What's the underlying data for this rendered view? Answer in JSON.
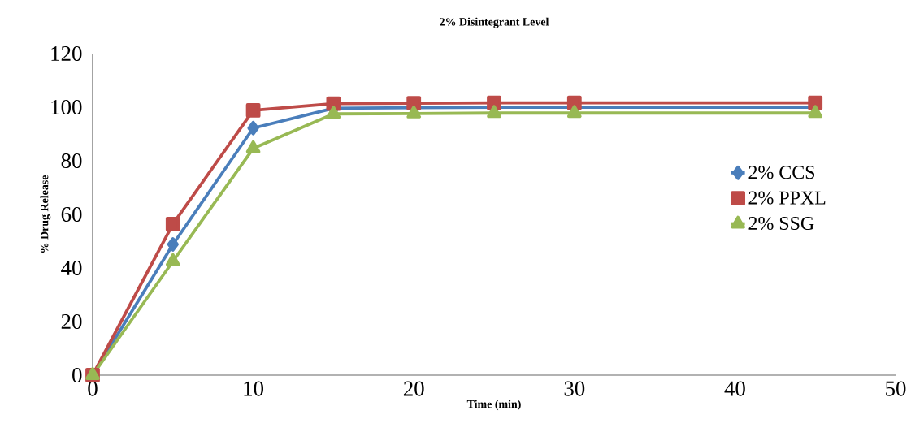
{
  "chart_data": {
    "type": "line",
    "title": "2% Disintegrant Level",
    "xlabel": "Time (min)",
    "ylabel": "% Drug Release",
    "x": [
      0,
      5,
      10,
      15,
      20,
      25,
      30,
      45
    ],
    "series": [
      {
        "name": "2% CCS",
        "color": "#4a7ebb",
        "marker": "diamond",
        "values": [
          0,
          48.8,
          92.2,
          99.6,
          99.8,
          100,
          100,
          100
        ]
      },
      {
        "name": "2% PPXL",
        "color": "#be4b48",
        "marker": "square",
        "values": [
          0,
          56.4,
          98.8,
          101.3,
          101.5,
          101.6,
          101.6,
          101.6
        ]
      },
      {
        "name": "2% SSG",
        "color": "#98b954",
        "marker": "triangle",
        "values": [
          0,
          42.5,
          84.6,
          97.5,
          97.6,
          97.8,
          97.8,
          97.8
        ]
      }
    ],
    "xlim": [
      0,
      50
    ],
    "xticks": [
      0,
      10,
      20,
      30,
      40,
      50
    ],
    "ylim": [
      0,
      120
    ],
    "yticks": [
      0,
      20,
      40,
      60,
      80,
      100,
      120
    ],
    "grid": false,
    "legend": "right",
    "line_style": "solid"
  }
}
